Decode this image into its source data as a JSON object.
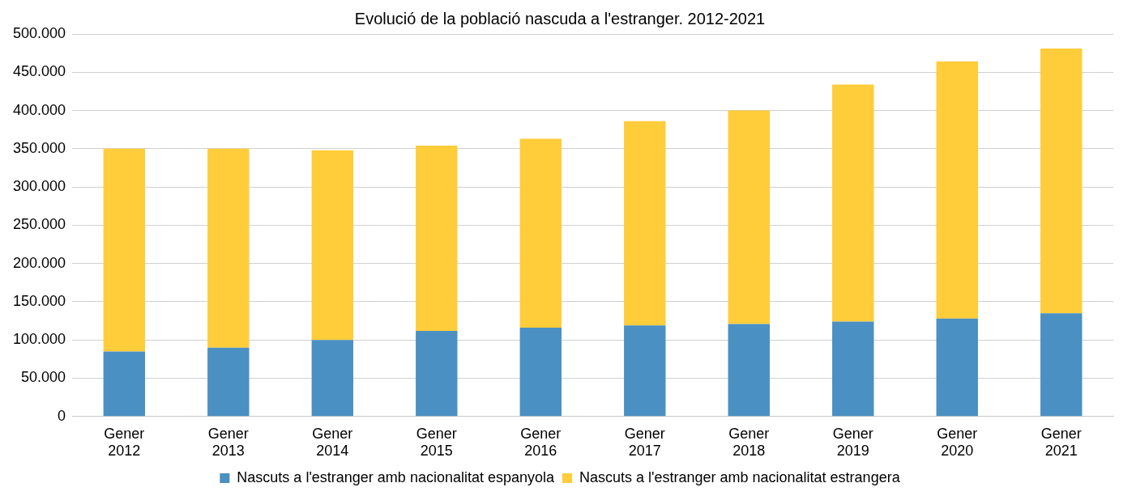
{
  "chart_data": {
    "type": "bar",
    "title": "Evolució de la població nascuda a l'estranger. 2012-2021",
    "categories": [
      "Gener 2012",
      "Gener 2013",
      "Gener 2014",
      "Gener 2015",
      "Gener 2016",
      "Gener 2017",
      "Gener 2018",
      "Gener 2019",
      "Gener 2020",
      "Gener 2021"
    ],
    "stacked": true,
    "series": [
      {
        "name": "Nascuts a l'estranger amb nacionalitat espanyola",
        "color": "#4a90c2",
        "values": [
          85000,
          90000,
          100000,
          112000,
          116000,
          119000,
          121000,
          124000,
          128000,
          135000
        ]
      },
      {
        "name": "Nascuts a l'estranger amb nacionalitat estrangera",
        "color": "#ffcc3a",
        "values": [
          265000,
          260000,
          248000,
          242000,
          247000,
          267000,
          279000,
          310000,
          336000,
          346000
        ]
      }
    ],
    "ylim": [
      0,
      500000
    ],
    "yticks": [
      0,
      {
        "value": 50000,
        "label": "50.000"
      },
      {
        "value": 100000,
        "label": "100.000"
      },
      {
        "value": 150000,
        "label": "150.000"
      },
      {
        "value": 200000,
        "label": "200.000"
      },
      {
        "value": 250000,
        "label": "250.000"
      },
      {
        "value": 300000,
        "label": "300.000"
      },
      {
        "value": 350000,
        "label": "350.000"
      },
      {
        "value": 400000,
        "label": "400.000"
      },
      {
        "value": 450000,
        "label": "450.000"
      },
      {
        "value": 500000,
        "label": "500.000"
      }
    ],
    "grid": "y",
    "legend": "bottom"
  }
}
